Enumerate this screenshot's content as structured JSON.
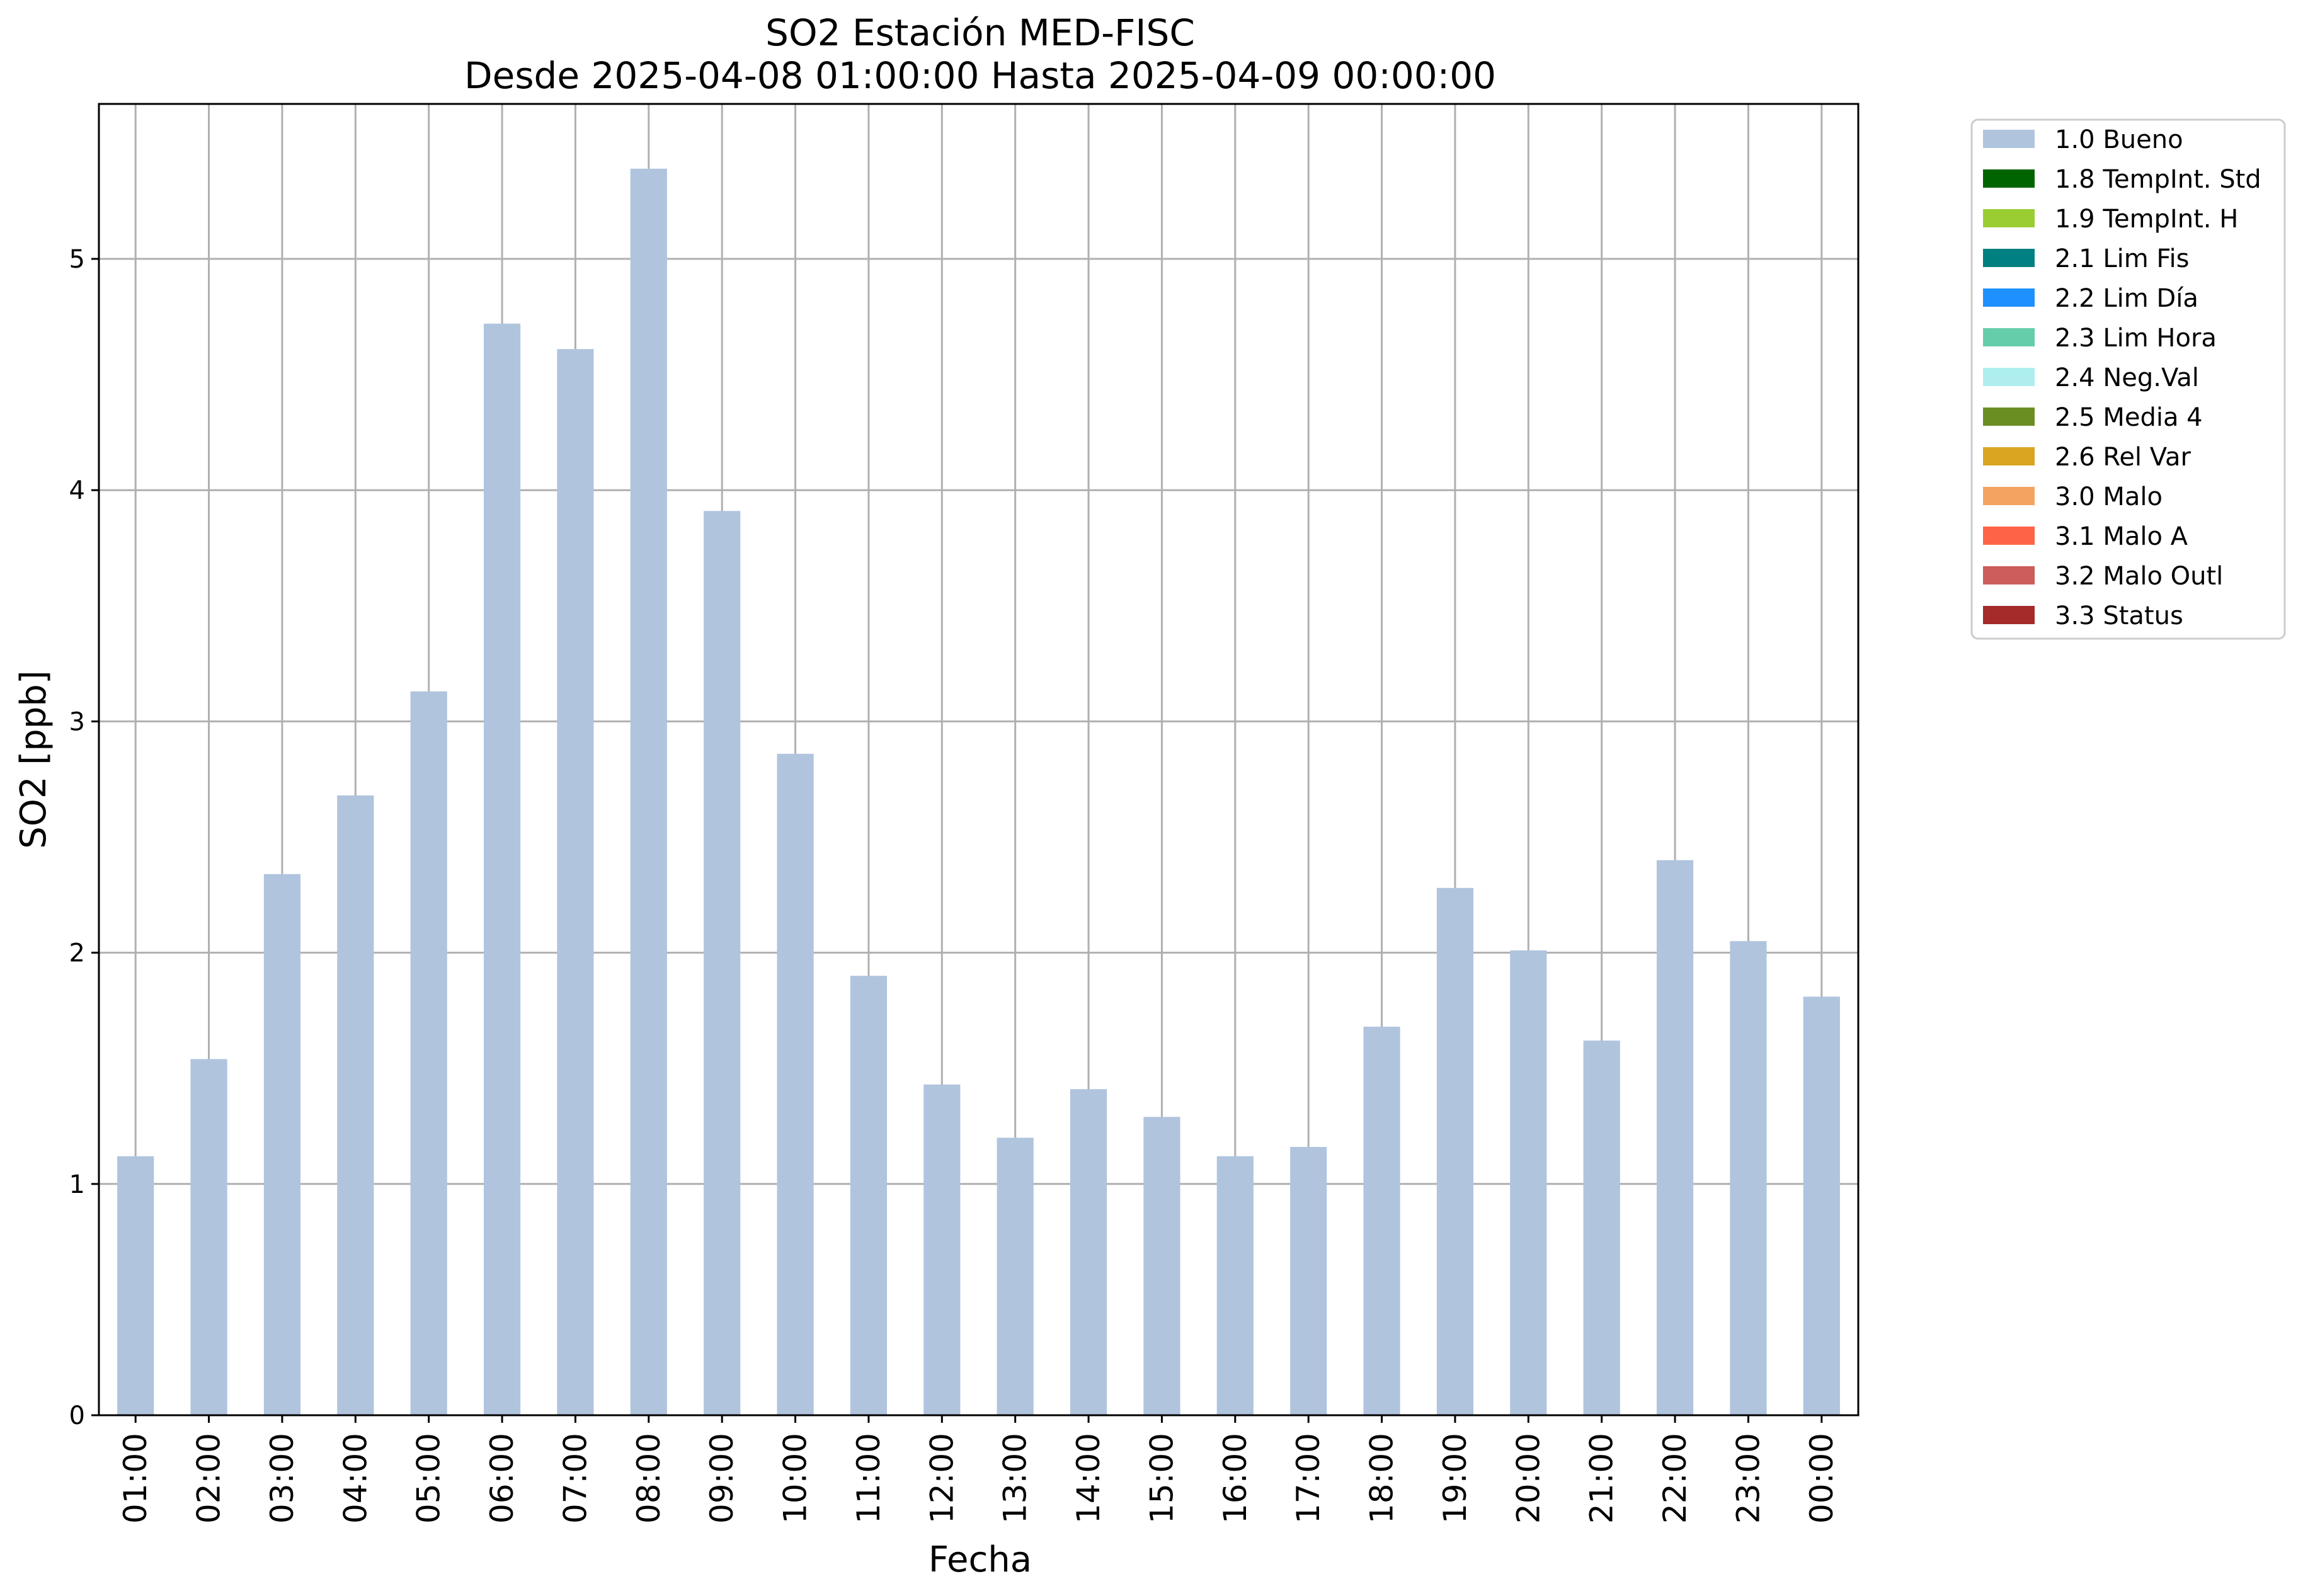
{
  "chart_data": {
    "type": "bar",
    "title_line1": "SO2 Estación MED-FISC",
    "title_line2": "Desde 2025-04-08 01:00:00 Hasta 2025-04-09 00:00:00",
    "xlabel": "Fecha",
    "ylabel": "SO2 [ppb]",
    "ylim": [
      0,
      5.67
    ],
    "yticks": [
      "0",
      "1",
      "2",
      "3",
      "4",
      "5"
    ],
    "grid": true,
    "legend_placement": "outside-top-right",
    "categories": [
      "01:00",
      "02:00",
      "03:00",
      "04:00",
      "05:00",
      "06:00",
      "07:00",
      "08:00",
      "09:00",
      "10:00",
      "11:00",
      "12:00",
      "13:00",
      "14:00",
      "15:00",
      "16:00",
      "17:00",
      "18:00",
      "19:00",
      "20:00",
      "21:00",
      "22:00",
      "23:00",
      "00:00"
    ],
    "series": [
      {
        "name": "1.0 Bueno",
        "color": "#b0c4de",
        "values": [
          1.12,
          1.54,
          2.34,
          2.68,
          3.13,
          4.72,
          4.61,
          5.39,
          3.91,
          2.86,
          1.9,
          1.43,
          1.2,
          1.41,
          1.29,
          1.12,
          1.16,
          1.68,
          2.28,
          2.01,
          1.62,
          2.4,
          2.05,
          1.81
        ]
      }
    ],
    "legend": [
      {
        "label": "1.0 Bueno",
        "color": "#b0c4de"
      },
      {
        "label": "1.8 TempInt. Std",
        "color": "#006400"
      },
      {
        "label": "1.9 TempInt. H",
        "color": "#9acd32"
      },
      {
        "label": "2.1 Lim Fis",
        "color": "#008080"
      },
      {
        "label": "2.2 Lim Día",
        "color": "#1e90ff"
      },
      {
        "label": "2.3 Lim Hora",
        "color": "#66cdaa"
      },
      {
        "label": "2.4 Neg.Val",
        "color": "#afeeee"
      },
      {
        "label": "2.5 Media 4",
        "color": "#6b8e23"
      },
      {
        "label": "2.6 Rel Var",
        "color": "#daa520"
      },
      {
        "label": "3.0 Malo",
        "color": "#f4a460"
      },
      {
        "label": "3.1 Malo A",
        "color": "#ff6347"
      },
      {
        "label": "3.2 Malo Outl",
        "color": "#cd5c5c"
      },
      {
        "label": "3.3 Status",
        "color": "#a52a2a"
      }
    ]
  }
}
